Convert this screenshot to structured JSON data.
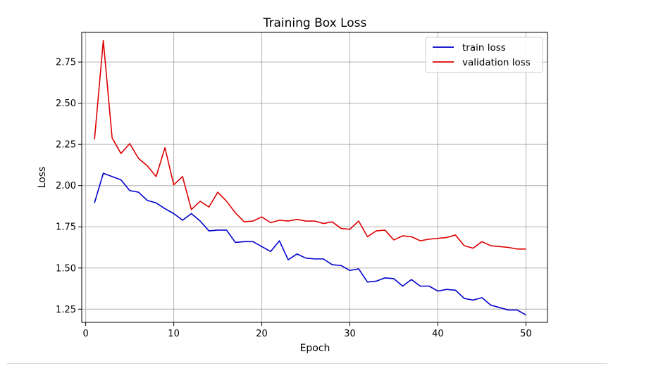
{
  "chart_data": {
    "type": "line",
    "title": "Training Box Loss",
    "xlabel": "Epoch",
    "ylabel": "Loss",
    "xlim": [
      -0.45,
      52.45
    ],
    "ylim": [
      1.17,
      2.93
    ],
    "xticks": [
      0,
      10,
      20,
      30,
      40,
      50
    ],
    "yticks": [
      1.25,
      1.5,
      1.75,
      2.0,
      2.25,
      2.5,
      2.75
    ],
    "ytick_labels": [
      "1.25",
      "1.50",
      "1.75",
      "2.00",
      "2.25",
      "2.50",
      "2.75"
    ],
    "grid": true,
    "legend_position": "top-right",
    "x": [
      1,
      2,
      3,
      4,
      5,
      6,
      7,
      8,
      9,
      10,
      11,
      12,
      13,
      14,
      15,
      16,
      17,
      18,
      19,
      20,
      21,
      22,
      23,
      24,
      25,
      26,
      27,
      28,
      29,
      30,
      31,
      32,
      33,
      34,
      35,
      36,
      37,
      38,
      39,
      40,
      41,
      42,
      43,
      44,
      45,
      46,
      47,
      48,
      49,
      50
    ],
    "series": [
      {
        "name": "train loss",
        "color": "#0000cc",
        "values": [
          1.895,
          2.075,
          2.055,
          2.035,
          1.97,
          1.96,
          1.91,
          1.895,
          1.86,
          1.83,
          1.79,
          1.83,
          1.785,
          1.725,
          1.73,
          1.73,
          1.655,
          1.66,
          1.66,
          1.63,
          1.6,
          1.665,
          1.55,
          1.585,
          1.56,
          1.555,
          1.555,
          1.52,
          1.515,
          1.485,
          1.495,
          1.415,
          1.42,
          1.44,
          1.435,
          1.39,
          1.43,
          1.39,
          1.39,
          1.36,
          1.37,
          1.365,
          1.315,
          1.305,
          1.32,
          1.275,
          1.26,
          1.245,
          1.245,
          1.215
        ]
      },
      {
        "name": "validation loss",
        "color": "#dd0000",
        "values": [
          2.28,
          2.88,
          2.29,
          2.195,
          2.255,
          2.165,
          2.12,
          2.055,
          2.23,
          2.005,
          2.055,
          1.855,
          1.905,
          1.87,
          1.96,
          1.905,
          1.835,
          1.78,
          1.785,
          1.81,
          1.775,
          1.79,
          1.785,
          1.795,
          1.785,
          1.785,
          1.77,
          1.78,
          1.74,
          1.735,
          1.785,
          1.69,
          1.725,
          1.73,
          1.67,
          1.695,
          1.69,
          1.665,
          1.675,
          1.68,
          1.685,
          1.7,
          1.635,
          1.62,
          1.66,
          1.635,
          1.63,
          1.625,
          1.615,
          1.615
        ]
      }
    ]
  }
}
